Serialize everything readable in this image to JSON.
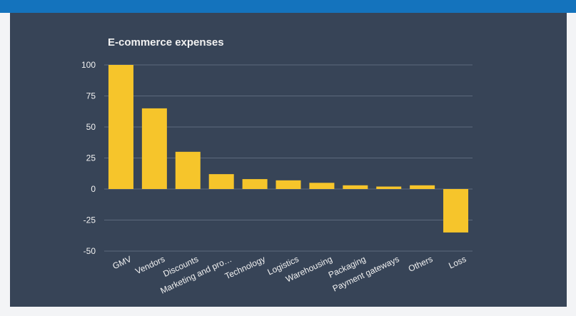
{
  "chart_data": {
    "type": "bar",
    "title": "E-commerce expenses",
    "xlabel": "",
    "ylabel": "",
    "categories": [
      "GMV",
      "Vendors",
      "Discounts",
      "Marketing and pro…",
      "Technology",
      "Logistics",
      "Warehousing",
      "Packaging",
      "Payment gateways",
      "Others",
      "Loss"
    ],
    "values": [
      100,
      65,
      30,
      12,
      8,
      7,
      5,
      3,
      2,
      3,
      -35
    ],
    "ylim": [
      -50,
      100
    ],
    "yticks": [
      100,
      75,
      50,
      25,
      0,
      -25,
      -50
    ],
    "grid": true,
    "legend": "none",
    "colors": {
      "bar": "#f6c52b",
      "background": "#374457",
      "grid": "#5d6a7c",
      "text": "#f1f1f1",
      "header": "#1473bd"
    }
  }
}
